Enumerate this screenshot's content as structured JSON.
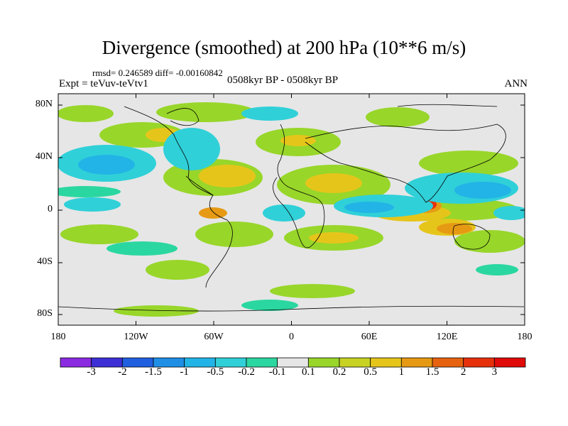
{
  "plot": {
    "title": "Divergence (smoothed) at 200 hPa (10**6 m/s)",
    "stats": "rmsd= 0.246589 diff= -0.00160842",
    "experiment": "Expt = teVuv-teVtv1",
    "period": "0508kyr BP - 0508kyr BP",
    "season": "ANN"
  },
  "axes": {
    "lat_ticks": [
      "80N",
      "40N",
      "0",
      "40S",
      "80S"
    ],
    "lon_ticks": [
      "180",
      "120W",
      "60W",
      "0",
      "60E",
      "120E",
      "180"
    ]
  },
  "colorbar": {
    "labels": [
      "-3",
      "-2",
      "-1.5",
      "-1",
      "-0.5",
      "-0.2",
      "-0.1",
      "0.1",
      "0.2",
      "0.5",
      "1",
      "1.5",
      "2",
      "3"
    ],
    "colors": [
      "#8a2be2",
      "#3d2fd6",
      "#1f5fe0",
      "#1f8fe6",
      "#22b4e6",
      "#30d0d8",
      "#2bd7a0",
      "#e6e6e6",
      "#98d62a",
      "#c8d223",
      "#e6c51a",
      "#e69a14",
      "#e6620f",
      "#e6300c",
      "#e00a08"
    ]
  }
}
